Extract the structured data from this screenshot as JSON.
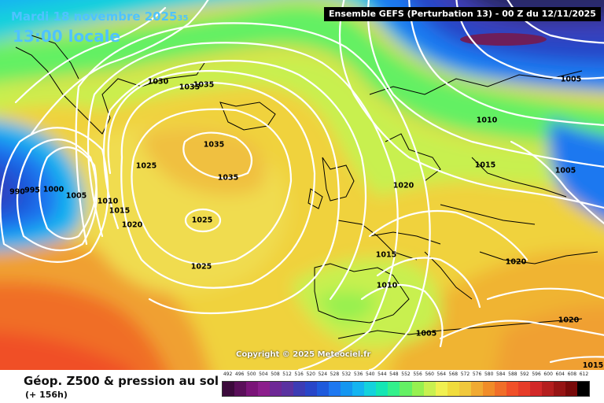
{
  "header": {
    "date": "Mardi 18 novembre 2025",
    "date_tail": "35",
    "time": "13:00 locale",
    "model": "Ensemble GEFS  (Perturbation 13)  -  00 Z du 12/11/2025"
  },
  "copyright": "Copyright © 2025 Meteociel.fr",
  "footer": {
    "title": "Géop. Z500 & pression au sol",
    "range": "(+ 156h)"
  },
  "isobar_labels": [
    {
      "text": "1030"
    },
    {
      "text": "1035"
    },
    {
      "text": "1035"
    },
    {
      "text": "1035"
    },
    {
      "text": "1035"
    },
    {
      "text": "1025"
    },
    {
      "text": "1025"
    },
    {
      "text": "1025"
    },
    {
      "text": "1020"
    },
    {
      "text": "1015"
    },
    {
      "text": "1010"
    },
    {
      "text": "1005"
    },
    {
      "text": "1000"
    },
    {
      "text": "995"
    },
    {
      "text": "990"
    },
    {
      "text": "1020"
    },
    {
      "text": "1015"
    },
    {
      "text": "1010"
    },
    {
      "text": "1005"
    },
    {
      "text": "1010"
    },
    {
      "text": "1015"
    },
    {
      "text": "1005"
    },
    {
      "text": "1005"
    },
    {
      "text": "1020"
    },
    {
      "text": "1020"
    },
    {
      "text": "1015"
    }
  ],
  "legend": {
    "values": [
      "492",
      "496",
      "500",
      "504",
      "508",
      "512",
      "516",
      "520",
      "524",
      "528",
      "532",
      "536",
      "540",
      "544",
      "548",
      "552",
      "556",
      "560",
      "564",
      "568",
      "572",
      "576",
      "580",
      "584",
      "588",
      "592",
      "596",
      "600",
      "604",
      "608",
      "612"
    ],
    "colors": [
      "#3c0a3c",
      "#5a0f5a",
      "#7a1478",
      "#8c1e8c",
      "#6e2896",
      "#5a32a0",
      "#3c3cb4",
      "#2846c8",
      "#1e5adc",
      "#1e78f0",
      "#1496f0",
      "#14b4f0",
      "#14d2dc",
      "#14e6b4",
      "#32f08c",
      "#64f064",
      "#96f050",
      "#c8f050",
      "#f0f050",
      "#f0dc3c",
      "#f0c83c",
      "#f0aa32",
      "#f08c28",
      "#f06e28",
      "#f05028",
      "#e63c28",
      "#d22828",
      "#b41e1e",
      "#961414",
      "#780a0a",
      "#000000"
    ]
  }
}
